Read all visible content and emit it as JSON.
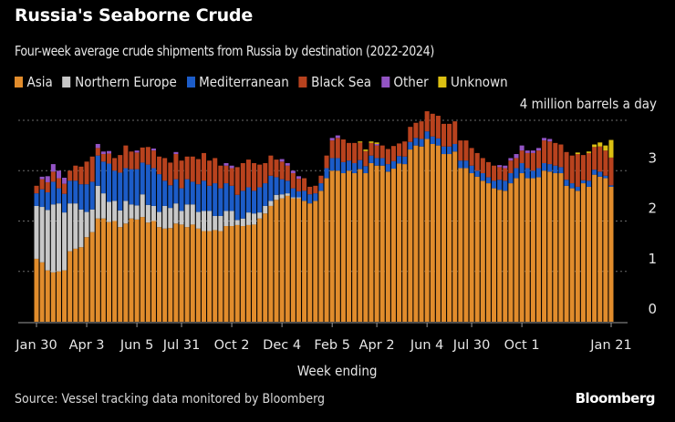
{
  "title": "Russia's Seaborne Crude",
  "subtitle": "Four-week average crude shipments from Russia by destination (2022-2024)",
  "unit_label": "4 million barrels a day",
  "xlabel": "Week ending",
  "source": "Source: Vessel tracking data monitored by Bloomberg",
  "brand": "Bloomberg",
  "legend": [
    {
      "name": "Asia",
      "color": "#e18c2c"
    },
    {
      "name": "Northern Europe",
      "color": "#c8c8c8"
    },
    {
      "name": "Mediterranean",
      "color": "#1c5cc8"
    },
    {
      "name": "Black Sea",
      "color": "#b8421e"
    },
    {
      "name": "Other",
      "color": "#9354c4"
    },
    {
      "name": "Unknown",
      "color": "#dcc012"
    }
  ],
  "chart_data": {
    "type": "bar",
    "stacked": true,
    "title": "Russia's Seaborne Crude",
    "subtitle": "Four-week average crude shipments from Russia by destination (2022-2024)",
    "xlabel": "Week ending",
    "ylabel": "million barrels a day",
    "ylim": [
      0,
      4
    ],
    "yticks": [
      0,
      1,
      2,
      3,
      4
    ],
    "ytick_labels": [
      "0",
      "1",
      "2",
      "3",
      "4 million barrels a day"
    ],
    "grid": true,
    "legend_position": "top-left",
    "x_start": "2022-01-30",
    "x_end": "2024-01-21",
    "x_interval": "weekly",
    "xtick_labels": [
      {
        "label": "Jan 30",
        "index": 0
      },
      {
        "label": "Apr 3",
        "index": 9
      },
      {
        "label": "Jun 5",
        "index": 18
      },
      {
        "label": "Jul 31",
        "index": 26
      },
      {
        "label": "Oct 2",
        "index": 35
      },
      {
        "label": "Dec 4",
        "index": 44
      },
      {
        "label": "Feb 5",
        "index": 53
      },
      {
        "label": "Apr 2",
        "index": 61
      },
      {
        "label": "Jun 4",
        "index": 70
      },
      {
        "label": "Jul 30",
        "index": 78
      },
      {
        "label": "Oct 1",
        "index": 87
      },
      {
        "label": "Jan 21",
        "index": 103
      }
    ],
    "series": [
      {
        "name": "Asia",
        "values": [
          1.25,
          1.18,
          1.02,
          0.98,
          1.0,
          1.02,
          1.4,
          1.45,
          1.48,
          1.68,
          1.78,
          2.05,
          2.05,
          1.98,
          2.0,
          1.88,
          1.95,
          2.05,
          2.03,
          2.08,
          1.97,
          2.0,
          1.88,
          1.85,
          1.86,
          1.95,
          1.93,
          1.88,
          1.93,
          1.85,
          1.8,
          1.8,
          1.82,
          1.8,
          1.9,
          1.9,
          1.92,
          1.9,
          1.92,
          1.93,
          2.05,
          2.15,
          2.3,
          2.42,
          2.45,
          2.5,
          2.45,
          2.45,
          2.4,
          2.35,
          2.4,
          2.6,
          2.85,
          3.0,
          3.0,
          2.95,
          3.0,
          2.95,
          3.03,
          2.95,
          3.15,
          3.1,
          3.1,
          2.98,
          3.04,
          3.14,
          3.13,
          3.42,
          3.5,
          3.48,
          3.63,
          3.53,
          3.5,
          3.33,
          3.33,
          3.38,
          3.05,
          3.05,
          2.95,
          2.88,
          2.8,
          2.75,
          2.65,
          2.62,
          2.6,
          2.75,
          2.85,
          2.95,
          2.85,
          2.85,
          2.87,
          3.0,
          2.98,
          2.95,
          2.95,
          2.7,
          2.65,
          2.6,
          2.75,
          2.68,
          2.92,
          2.88,
          2.85,
          2.68
        ]
      },
      {
        "name": "Northern Europe",
        "values": [
          1.05,
          1.1,
          1.2,
          1.35,
          1.35,
          1.15,
          0.95,
          0.9,
          0.75,
          0.5,
          0.45,
          0.65,
          0.5,
          0.4,
          0.4,
          0.33,
          0.45,
          0.28,
          0.28,
          0.45,
          0.35,
          0.3,
          0.3,
          0.45,
          0.4,
          0.4,
          0.27,
          0.45,
          0.4,
          0.33,
          0.4,
          0.4,
          0.28,
          0.3,
          0.3,
          0.3,
          0.1,
          0.15,
          0.25,
          0.22,
          0.12,
          0.15,
          0.1,
          0.1,
          0.08,
          0.05,
          0.02,
          0.02,
          0.0,
          0.0,
          0.0,
          0.0,
          0.0,
          0.0,
          0.0,
          0.0,
          0.0,
          0.0,
          0.0,
          0.0,
          0.0,
          0.0,
          0.0,
          0.0,
          0.0,
          0.0,
          0.0,
          0.0,
          0.0,
          0.0,
          0.0,
          0.0,
          0.0,
          0.0,
          0.0,
          0.0,
          0.0,
          0.0,
          0.0,
          0.0,
          0.0,
          0.0,
          0.0,
          0.0,
          0.0,
          0.0,
          0.0,
          0.0,
          0.0,
          0.0,
          0.0,
          0.0,
          0.0,
          0.0,
          0.0,
          0.0,
          0.0,
          0.0,
          0.0,
          0.0,
          0.0,
          0.0,
          0.0,
          0.0
        ]
      },
      {
        "name": "Mediterranean",
        "values": [
          0.25,
          0.35,
          0.35,
          0.45,
          0.3,
          0.37,
          0.45,
          0.45,
          0.5,
          0.55,
          0.55,
          0.6,
          0.63,
          0.76,
          0.6,
          0.75,
          0.65,
          0.7,
          0.72,
          0.63,
          0.8,
          0.75,
          0.75,
          0.5,
          0.45,
          0.48,
          0.45,
          0.5,
          0.45,
          0.55,
          0.6,
          0.5,
          0.65,
          0.55,
          0.55,
          0.5,
          0.5,
          0.55,
          0.5,
          0.45,
          0.5,
          0.45,
          0.5,
          0.35,
          0.3,
          0.25,
          0.18,
          0.12,
          0.2,
          0.18,
          0.15,
          0.15,
          0.2,
          0.25,
          0.25,
          0.22,
          0.2,
          0.2,
          0.18,
          0.14,
          0.15,
          0.15,
          0.15,
          0.15,
          0.15,
          0.15,
          0.15,
          0.15,
          0.15,
          0.15,
          0.15,
          0.15,
          0.14,
          0.15,
          0.15,
          0.15,
          0.15,
          0.15,
          0.15,
          0.12,
          0.15,
          0.12,
          0.15,
          0.2,
          0.2,
          0.2,
          0.2,
          0.2,
          0.2,
          0.15,
          0.18,
          0.15,
          0.15,
          0.15,
          0.12,
          0.12,
          0.1,
          0.08,
          0.06,
          0.12,
          0.1,
          0.1,
          0.05,
          0.03
        ]
      },
      {
        "name": "Black Sea",
        "values": [
          0.15,
          0.2,
          0.2,
          0.2,
          0.2,
          0.2,
          0.2,
          0.3,
          0.35,
          0.45,
          0.5,
          0.15,
          0.15,
          0.2,
          0.25,
          0.35,
          0.45,
          0.35,
          0.33,
          0.3,
          0.35,
          0.35,
          0.35,
          0.45,
          0.45,
          0.5,
          0.55,
          0.45,
          0.5,
          0.5,
          0.55,
          0.5,
          0.5,
          0.45,
          0.35,
          0.35,
          0.55,
          0.55,
          0.55,
          0.55,
          0.45,
          0.4,
          0.4,
          0.35,
          0.35,
          0.3,
          0.3,
          0.25,
          0.25,
          0.15,
          0.15,
          0.15,
          0.25,
          0.35,
          0.4,
          0.45,
          0.35,
          0.4,
          0.35,
          0.3,
          0.25,
          0.25,
          0.25,
          0.3,
          0.3,
          0.25,
          0.3,
          0.3,
          0.3,
          0.35,
          0.4,
          0.45,
          0.45,
          0.45,
          0.45,
          0.45,
          0.4,
          0.4,
          0.35,
          0.35,
          0.3,
          0.3,
          0.3,
          0.25,
          0.25,
          0.25,
          0.2,
          0.25,
          0.3,
          0.35,
          0.35,
          0.45,
          0.45,
          0.45,
          0.45,
          0.55,
          0.55,
          0.65,
          0.5,
          0.55,
          0.45,
          0.5,
          0.5,
          0.55
        ]
      },
      {
        "name": "Other",
        "values": [
          0.0,
          0.05,
          0.12,
          0.15,
          0.15,
          0.12,
          0.0,
          0.0,
          0.0,
          0.0,
          0.0,
          0.08,
          0.05,
          0.05,
          0.0,
          0.0,
          0.0,
          0.0,
          0.04,
          0.0,
          0.0,
          0.04,
          0.0,
          0.0,
          0.0,
          0.04,
          0.0,
          0.0,
          0.0,
          0.0,
          0.0,
          0.0,
          0.0,
          0.0,
          0.05,
          0.05,
          0.0,
          0.0,
          0.0,
          0.0,
          0.0,
          0.0,
          0.0,
          0.0,
          0.05,
          0.05,
          0.05,
          0.05,
          0.0,
          0.0,
          0.0,
          0.0,
          0.0,
          0.05,
          0.05,
          0.0,
          0.0,
          0.0,
          0.0,
          0.0,
          0.0,
          0.03,
          0.0,
          0.0,
          0.0,
          0.0,
          0.0,
          0.0,
          0.0,
          0.0,
          0.0,
          0.0,
          0.0,
          0.0,
          0.0,
          0.0,
          0.0,
          0.0,
          0.0,
          0.0,
          0.0,
          0.0,
          0.0,
          0.04,
          0.05,
          0.05,
          0.08,
          0.1,
          0.05,
          0.05,
          0.05,
          0.05,
          0.05,
          0.0,
          0.0,
          0.0,
          0.0,
          0.0,
          0.0,
          0.0,
          0.0,
          0.0,
          0.0,
          0.0
        ]
      },
      {
        "name": "Unknown",
        "values": [
          0.0,
          0.0,
          0.0,
          0.0,
          0.0,
          0.0,
          0.0,
          0.0,
          0.0,
          0.0,
          0.0,
          0.0,
          0.0,
          0.0,
          0.0,
          0.0,
          0.0,
          0.0,
          0.0,
          0.0,
          0.0,
          0.0,
          0.0,
          0.0,
          0.0,
          0.0,
          0.0,
          0.0,
          0.0,
          0.0,
          0.0,
          0.0,
          0.0,
          0.0,
          0.0,
          0.0,
          0.0,
          0.0,
          0.0,
          0.0,
          0.0,
          0.0,
          0.0,
          0.0,
          0.0,
          0.0,
          0.0,
          0.0,
          0.0,
          0.0,
          0.0,
          0.0,
          0.0,
          0.0,
          0.0,
          0.0,
          0.0,
          0.0,
          0.02,
          0.03,
          0.03,
          0.03,
          0.0,
          0.0,
          0.0,
          0.0,
          0.0,
          0.0,
          0.0,
          0.0,
          0.0,
          0.0,
          0.0,
          0.0,
          0.0,
          0.0,
          0.0,
          0.0,
          0.0,
          0.0,
          0.0,
          0.0,
          0.0,
          0.0,
          0.0,
          0.0,
          0.0,
          0.0,
          0.0,
          0.0,
          0.0,
          0.0,
          0.0,
          0.0,
          0.0,
          0.0,
          0.0,
          0.03,
          0.0,
          0.03,
          0.05,
          0.08,
          0.1,
          0.35
        ]
      }
    ]
  }
}
